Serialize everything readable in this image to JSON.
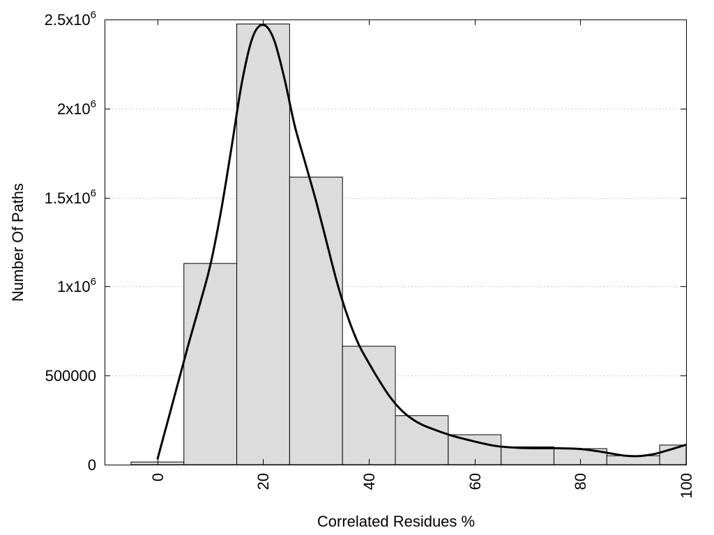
{
  "chart_data": {
    "type": "bar",
    "title": "",
    "xlabel": "Correlated Residues %",
    "ylabel": "Number Of Paths",
    "xlim": [
      -10,
      100
    ],
    "ylim": [
      0,
      2500000
    ],
    "grid": "horizontal dotted",
    "bar_color": "#dcdcdc",
    "bar_edge_color": "#000000",
    "curve_color": "#000000",
    "x_ticks": [
      {
        "value": 0,
        "label": "0"
      },
      {
        "value": 20,
        "label": "20"
      },
      {
        "value": 40,
        "label": "40"
      },
      {
        "value": 60,
        "label": "60"
      },
      {
        "value": 80,
        "label": "80"
      },
      {
        "value": 100,
        "label": "100"
      }
    ],
    "y_ticks": [
      {
        "value": 0,
        "label": "0"
      },
      {
        "value": 500000,
        "label": "500000"
      },
      {
        "value": 1000000,
        "base": "1x10",
        "exp": "6"
      },
      {
        "value": 1500000,
        "base": "1.5x10",
        "exp": "6"
      },
      {
        "value": 2000000,
        "base": "2x10",
        "exp": "6"
      },
      {
        "value": 2500000,
        "base": "2.5x10",
        "exp": "6"
      }
    ],
    "bins": [
      {
        "center": 0,
        "value": 15000
      },
      {
        "center": 10,
        "value": 1130000
      },
      {
        "center": 20,
        "value": 2475000
      },
      {
        "center": 30,
        "value": 1615000
      },
      {
        "center": 40,
        "value": 665000
      },
      {
        "center": 50,
        "value": 275000
      },
      {
        "center": 60,
        "value": 168000
      },
      {
        "center": 70,
        "value": 100000
      },
      {
        "center": 80,
        "value": 90000
      },
      {
        "center": 90,
        "value": 50000
      },
      {
        "center": 100,
        "value": 110000
      }
    ],
    "bin_width": 10,
    "curve": [
      [
        0,
        30000
      ],
      [
        2,
        250000
      ],
      [
        4,
        470000
      ],
      [
        6,
        690000
      ],
      [
        8,
        900000
      ],
      [
        10,
        1120000
      ],
      [
        12,
        1420000
      ],
      [
        14,
        1780000
      ],
      [
        16,
        2150000
      ],
      [
        18,
        2400000
      ],
      [
        20,
        2470000
      ],
      [
        22,
        2390000
      ],
      [
        24,
        2170000
      ],
      [
        26,
        1900000
      ],
      [
        28,
        1690000
      ],
      [
        30,
        1480000
      ],
      [
        32,
        1250000
      ],
      [
        34,
        1020000
      ],
      [
        36,
        830000
      ],
      [
        38,
        680000
      ],
      [
        40,
        570000
      ],
      [
        42,
        470000
      ],
      [
        44,
        380000
      ],
      [
        46,
        310000
      ],
      [
        48,
        260000
      ],
      [
        50,
        225000
      ],
      [
        53,
        190000
      ],
      [
        56,
        160000
      ],
      [
        60,
        130000
      ],
      [
        64,
        105000
      ],
      [
        68,
        95000
      ],
      [
        72,
        92000
      ],
      [
        76,
        92000
      ],
      [
        80,
        88000
      ],
      [
        84,
        72000
      ],
      [
        88,
        52000
      ],
      [
        91,
        48000
      ],
      [
        94,
        60000
      ],
      [
        97,
        85000
      ],
      [
        100,
        112000
      ]
    ]
  }
}
